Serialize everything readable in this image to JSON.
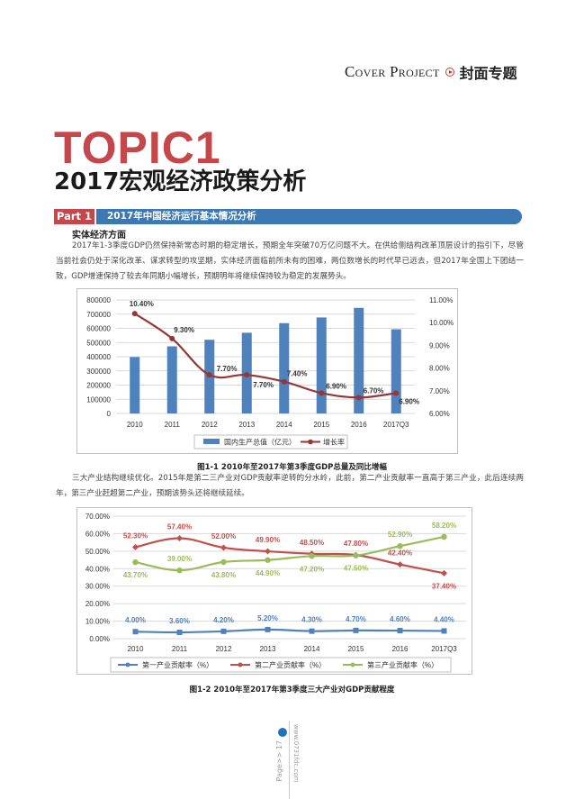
{
  "header": {
    "section_en": "Cover Project",
    "section_cn": "封面专题"
  },
  "topic": "TOPIC1",
  "title": "2017宏观经济政策分析",
  "part": {
    "label": "Part 1",
    "title": "2017年中国经济运行基本情况分析"
  },
  "subheading": "实体经济方面",
  "paragraph1": "2017年1-3季度GDP仍然保持新常态时期的稳定增长，预期全年突破70万亿问题不大。在供给侧结构改革顶层设计的指引下，尽管当前社会仍处于深化改革、谋求转型的攻坚期，实体经济面临前所未有的困难，两位数增长的时代早已远去，但2017年全国上下团结一致，GDP增速保持了较去年同期小幅增长，预期明年将继续保持较为稳定的发展势头。",
  "paragraph2": "三大产业结构继续优化。2015年是第二三产业对GDP贡献率逆转的分水岭，此前，第二产业贡献率一直高于第三产业，此后连续两年，第三产业赶超第二产业，预期该势头还将继续延续。",
  "footer": {
    "page": "Page>> 17",
    "site": "www.0731fdc.com"
  },
  "chart_data": [
    {
      "type": "bar+line",
      "caption": "图1-1  2010年至2017年第3季度GDP总量及同比增幅",
      "categories": [
        "2010",
        "2011",
        "2012",
        "2013",
        "2014",
        "2015",
        "2016",
        "2017Q3"
      ],
      "series": [
        {
          "name": "国内生产总值（亿元）",
          "type": "bar",
          "axis": "left",
          "color": "#4f81bd",
          "values": [
            397983,
            473104,
            519470,
            568845,
            636463,
            676708,
            744127,
            593288
          ]
        },
        {
          "name": "增长率",
          "type": "line",
          "axis": "right",
          "color": "#953735",
          "values": [
            10.4,
            9.3,
            7.7,
            7.7,
            7.4,
            6.9,
            6.7,
            6.9
          ],
          "labels": [
            "10.40%",
            "9.30%",
            "7.70%",
            "7.70%",
            "7.40%",
            "6.90%",
            "6.70%",
            "6.90%"
          ]
        }
      ],
      "left_axis": {
        "ylim": [
          0,
          800000
        ],
        "ticks": [
          "0",
          "100000",
          "200000",
          "300000",
          "400000",
          "500000",
          "600000",
          "700000",
          "800000"
        ]
      },
      "right_axis": {
        "ylim": [
          6,
          11
        ],
        "ticks": [
          "6.00%",
          "7.00%",
          "8.00%",
          "9.00%",
          "10.00%",
          "11.00%"
        ]
      },
      "legend": "bottom",
      "grid": true
    },
    {
      "type": "line",
      "caption": "图1-2  2010年至2017年第3季度三大产业对GDP贡献程度",
      "categories": [
        "2010",
        "2011",
        "2012",
        "2013",
        "2014",
        "2015",
        "2016",
        "2017Q3"
      ],
      "series": [
        {
          "name": "第一产业贡献率（%）",
          "color": "#4f81bd",
          "marker": "square",
          "values": [
            4.0,
            3.6,
            4.2,
            5.2,
            4.3,
            4.7,
            4.6,
            4.4
          ],
          "labels": [
            "4.00%",
            "3.60%",
            "4.20%",
            "5.20%",
            "4.30%",
            "4.70%",
            "4.60%",
            "4.40%"
          ]
        },
        {
          "name": "第二产业贡献率（%）",
          "color": "#c0504d",
          "marker": "diamond",
          "values": [
            52.3,
            57.4,
            52.0,
            49.9,
            48.5,
            47.8,
            42.4,
            37.4
          ],
          "labels": [
            "52.30%",
            "57.40%",
            "52.00%",
            "49.90%",
            "48.50%",
            "47.80%",
            "42.40%",
            "37.40%"
          ]
        },
        {
          "name": "第三产业贡献率（%）",
          "color": "#9bbb59",
          "marker": "circle",
          "values": [
            43.7,
            39.0,
            43.8,
            44.9,
            47.2,
            47.5,
            52.9,
            58.2
          ],
          "labels": [
            "43.70%",
            "39.00%",
            "43.80%",
            "44.90%",
            "47.20%",
            "47.50%",
            "52.90%",
            "58.20%"
          ]
        }
      ],
      "ylim": [
        0,
        70
      ],
      "ticks": [
        "0.00%",
        "10.00%",
        "20.00%",
        "30.00%",
        "40.00%",
        "50.00%",
        "60.00%",
        "70.00%"
      ],
      "legend": "bottom",
      "grid": true
    }
  ]
}
